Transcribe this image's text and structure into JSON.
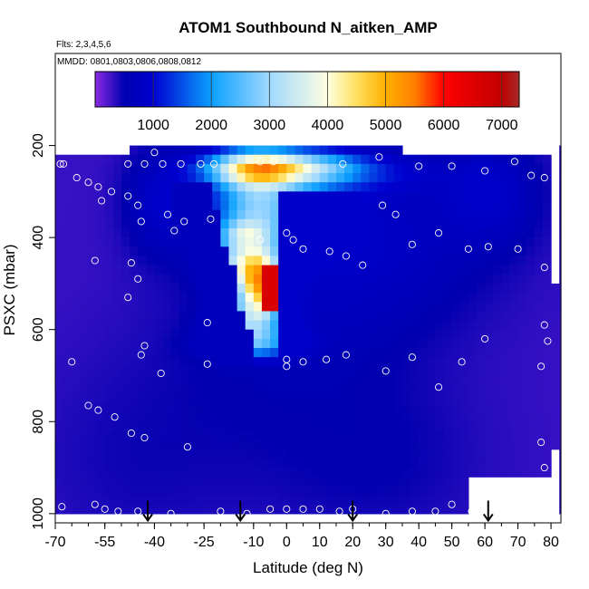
{
  "chart_data": {
    "type": "heatmap",
    "title": "ATOM1 Southbound N_aitken_AMP",
    "subtitle_flights": "Flts: 2,3,4,5,6",
    "subtitle_dates": "MMDD: 0801,0803,0806,0808,0812",
    "xlabel": "Latitude (deg N)",
    "ylabel": "PSXC (mbar)",
    "xlim": [
      -70,
      83
    ],
    "ylim": [
      1020,
      0
    ],
    "x_ticks": [
      -70,
      -55,
      -40,
      -25,
      -10,
      0,
      10,
      20,
      30,
      40,
      50,
      60,
      70,
      80
    ],
    "x_tick_labels": [
      "-70",
      "-55",
      "-40",
      "-25",
      "-10",
      "0",
      "10",
      "20",
      "30",
      "40",
      "50",
      "60",
      "70",
      "80"
    ],
    "y_ticks": [
      200,
      400,
      600,
      800,
      1000
    ],
    "y_tick_labels": [
      "200",
      "400",
      "600",
      "800",
      "1000"
    ],
    "colorbar": {
      "min": 0,
      "max": 7300,
      "ticks": [
        1000,
        2000,
        3000,
        4000,
        5000,
        6000,
        7000
      ],
      "tick_labels": [
        "1000",
        "2000",
        "3000",
        "4000",
        "5000",
        "6000",
        "7000"
      ],
      "color_stops": [
        {
          "value": 0,
          "color": "#8a2be2"
        },
        {
          "value": 500,
          "color": "#0000b0"
        },
        {
          "value": 1000,
          "color": "#0000d0"
        },
        {
          "value": 2000,
          "color": "#0aa0ff"
        },
        {
          "value": 3000,
          "color": "#a0d8ff"
        },
        {
          "value": 4000,
          "color": "#ffffe0"
        },
        {
          "value": 4500,
          "color": "#ffe060"
        },
        {
          "value": 5000,
          "color": "#ffb000"
        },
        {
          "value": 5500,
          "color": "#ff8000"
        },
        {
          "value": 6000,
          "color": "#ff0000"
        },
        {
          "value": 7000,
          "color": "#c00000"
        },
        {
          "value": 7300,
          "color": "#a52a2a"
        }
      ]
    },
    "grid": {
      "lat_start": -70,
      "lat_step": 2.5,
      "lat_count": 62,
      "p_top": 200,
      "p_step": 20,
      "p_count": 40
    },
    "ref_value": 300,
    "features": [
      {
        "lat": -48,
        "p": 880,
        "sl": 20,
        "sp": 160,
        "a": 120
      },
      {
        "lat": 10,
        "p": 880,
        "sl": 35,
        "sp": 140,
        "a": 120
      },
      {
        "lat": 30,
        "p": 880,
        "sl": 18,
        "sp": 120,
        "a": 100
      },
      {
        "lat": -3,
        "p": 620,
        "sl": 25,
        "sp": 140,
        "a": 220
      },
      {
        "lat": -10,
        "p": 330,
        "sl": 8,
        "sp": 80,
        "a": 1700
      },
      {
        "lat": 0,
        "p": 330,
        "sl": 12,
        "sp": 70,
        "a": 900
      },
      {
        "lat": -12,
        "p": 250,
        "sl": 10,
        "sp": 25,
        "a": 2400
      },
      {
        "lat": 0,
        "p": 250,
        "sl": 10,
        "sp": 25,
        "a": 2000
      },
      {
        "lat": 14,
        "p": 250,
        "sl": 9,
        "sp": 25,
        "a": 900
      },
      {
        "lat": 28,
        "p": 260,
        "sl": 15,
        "sp": 30,
        "a": 400
      },
      {
        "lat": 25,
        "p": 400,
        "sl": 25,
        "sp": 140,
        "a": 500
      },
      {
        "lat": -12,
        "p": 460,
        "sl": 7,
        "sp": 40,
        "a": 2600
      },
      {
        "lat": -8,
        "p": 510,
        "sl": 4,
        "sp": 40,
        "a": 3200
      },
      {
        "lat": -11,
        "p": 580,
        "sl": 7,
        "sp": 35,
        "a": 2000
      },
      {
        "lat": -10,
        "p": 630,
        "sl": 9,
        "sp": 22,
        "a": 1400
      },
      {
        "lat": -13,
        "p": 390,
        "sl": 5,
        "sp": 20,
        "a": 1200
      },
      {
        "lat": 62,
        "p": 300,
        "sl": 10,
        "sp": 80,
        "a": 500
      },
      {
        "lat": -37,
        "p": 320,
        "sl": 8,
        "sp": 80,
        "a": 600
      }
    ],
    "hotspot": {
      "lat_min": -7.5,
      "lat_max": -3,
      "p_min": 460,
      "p_max": 560,
      "value": 6600
    },
    "mask_rules": [
      {
        "lat_min": -70,
        "lat_max": -47.5,
        "p_max": 220
      },
      {
        "lat_min": -47.5,
        "lat_max": 34,
        "p_max": 195
      },
      {
        "lat_min": 34,
        "lat_max": 79,
        "p_max": 220
      },
      {
        "lat_min": 79,
        "lat_max": 83,
        "p_max": 500
      },
      {
        "lat_min": 54.5,
        "lat_max": 83,
        "p_min": 925
      },
      {
        "lat_min": 80,
        "lat_max": 83,
        "p_min": 860
      }
    ],
    "wedge_edge": [
      {
        "p": 280,
        "lat": -22.5
      },
      {
        "p": 320,
        "lat": -22.5
      },
      {
        "p": 360,
        "lat": -20
      },
      {
        "p": 400,
        "lat": -20
      },
      {
        "p": 440,
        "lat": -17.5
      },
      {
        "p": 460,
        "lat": -15
      },
      {
        "p": 500,
        "lat": -15
      },
      {
        "p": 540,
        "lat": -15
      },
      {
        "p": 580,
        "lat": -12.5
      },
      {
        "p": 620,
        "lat": -10
      },
      {
        "p": 660,
        "lat": -10
      }
    ],
    "sample_points": [
      [
        -40,
        215
      ],
      [
        -68.5,
        240
      ],
      [
        -67.5,
        240
      ],
      [
        -48,
        240
      ],
      [
        -43,
        240
      ],
      [
        -37.5,
        240
      ],
      [
        -32,
        240
      ],
      [
        -26,
        240
      ],
      [
        -22,
        240
      ],
      [
        -8,
        235
      ],
      [
        -4,
        235
      ],
      [
        17,
        240
      ],
      [
        28,
        225
      ],
      [
        29,
        185
      ],
      [
        40,
        245
      ],
      [
        50,
        245
      ],
      [
        60,
        255
      ],
      [
        69,
        235
      ],
      [
        74,
        265
      ],
      [
        78,
        270
      ],
      [
        -63.5,
        270
      ],
      [
        -60,
        280
      ],
      [
        -57,
        290
      ],
      [
        -53,
        300
      ],
      [
        -56,
        320
      ],
      [
        -48,
        310
      ],
      [
        -45,
        330
      ],
      [
        -36,
        350
      ],
      [
        -44,
        365
      ],
      [
        -31,
        365
      ],
      [
        -34,
        385
      ],
      [
        -23,
        360
      ],
      [
        -8,
        405
      ],
      [
        0,
        390
      ],
      [
        2,
        405
      ],
      [
        5,
        425
      ],
      [
        13,
        430
      ],
      [
        18,
        440
      ],
      [
        23,
        460
      ],
      [
        29,
        330
      ],
      [
        33,
        350
      ],
      [
        38,
        415
      ],
      [
        46,
        390
      ],
      [
        55,
        425
      ],
      [
        61,
        420
      ],
      [
        70,
        425
      ],
      [
        78,
        465
      ],
      [
        -58,
        450
      ],
      [
        -47,
        455
      ],
      [
        -45,
        490
      ],
      [
        -48,
        530
      ],
      [
        -24,
        585
      ],
      [
        -43,
        635
      ],
      [
        -44,
        655
      ],
      [
        -38,
        695
      ],
      [
        -24,
        675
      ],
      [
        0,
        665
      ],
      [
        0,
        680
      ],
      [
        5,
        670
      ],
      [
        12,
        665
      ],
      [
        18,
        655
      ],
      [
        30,
        690
      ],
      [
        38,
        660
      ],
      [
        46,
        725
      ],
      [
        53,
        670
      ],
      [
        60,
        620
      ],
      [
        77,
        680
      ],
      [
        78,
        590
      ],
      [
        79,
        625
      ],
      [
        -65,
        670
      ],
      [
        -60,
        765
      ],
      [
        -57,
        775
      ],
      [
        -52,
        790
      ],
      [
        -47,
        825
      ],
      [
        -43,
        835
      ],
      [
        -30,
        855
      ],
      [
        77,
        845
      ],
      [
        78,
        900
      ],
      [
        -68,
        985
      ],
      [
        -58,
        980
      ],
      [
        -55,
        990
      ],
      [
        -51,
        995
      ],
      [
        -45,
        995
      ],
      [
        -35,
        1000
      ],
      [
        -20,
        995
      ],
      [
        -12,
        1000
      ],
      [
        -5,
        990
      ],
      [
        0,
        990
      ],
      [
        5,
        990
      ],
      [
        10,
        990
      ],
      [
        16,
        995
      ],
      [
        20,
        990
      ],
      [
        30,
        1000
      ],
      [
        38,
        995
      ],
      [
        45,
        995
      ],
      [
        50,
        980
      ],
      [
        56,
        995
      ]
    ],
    "arrow_lats": [
      -42,
      -14,
      20,
      61
    ]
  }
}
